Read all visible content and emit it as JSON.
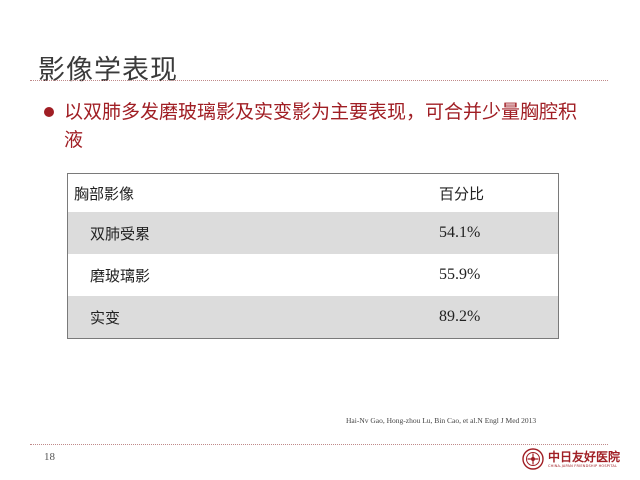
{
  "slide": {
    "title": "影像学表现",
    "bullet": "以双肺多发磨玻璃影及实变影为主要表现，可合并少量胸腔积液",
    "page_number": "18"
  },
  "table": {
    "headers": [
      "胸部影像",
      "百分比"
    ],
    "rows": [
      {
        "label": "双肺受累",
        "value": "54.1%"
      },
      {
        "label": "磨玻璃影",
        "value": "55.9%"
      },
      {
        "label": "实变",
        "value": "89.2%"
      }
    ]
  },
  "citation": "Hai-Nv Gao, Hong-zhou Lu, Bin Cao, et al.N Engl J Med 2013",
  "logo": {
    "name": "中日友好医院",
    "subname": "CHINA-JAPAN FRIENDSHIP HOSPITAL"
  },
  "colors": {
    "accent": "#a01e24",
    "row_shade": "#dcdcdc",
    "divider": "#c08a8a"
  }
}
